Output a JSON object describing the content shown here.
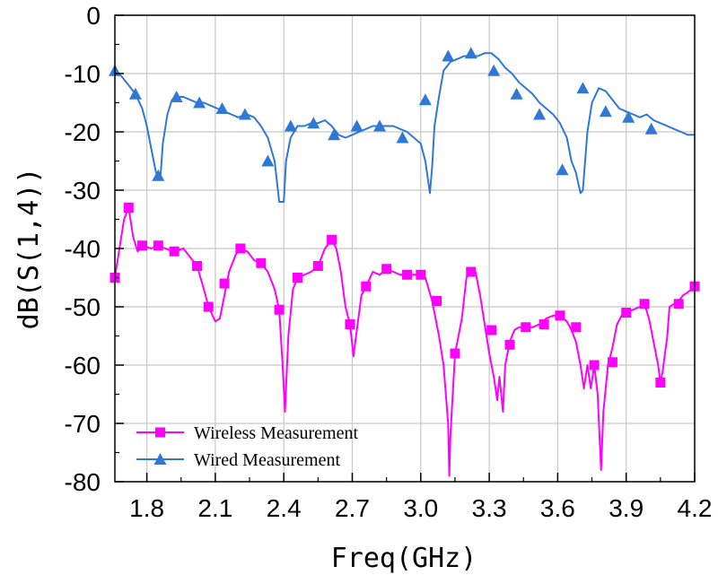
{
  "chart_data": {
    "type": "line",
    "xlabel": "Freq(GHz)",
    "ylabel": "dB(S(1,4))",
    "xlim": [
      1.66,
      4.2
    ],
    "ylim": [
      -80,
      0
    ],
    "x_ticks": [
      1.8,
      2.1,
      2.4,
      2.7,
      3.0,
      3.3,
      3.6,
      3.9,
      4.2
    ],
    "x_tick_labels": [
      "1.8",
      "2.1",
      "2.4",
      "2.7",
      "3.0",
      "3.3",
      "3.6",
      "3.9",
      "4.2"
    ],
    "y_ticks": [
      0,
      -10,
      -20,
      -30,
      -40,
      -50,
      -60,
      -70,
      -80
    ],
    "y_tick_labels": [
      "0",
      "-10",
      "-20",
      "-30",
      "-40",
      "-50",
      "-60",
      "-70",
      "-80"
    ],
    "grid": true,
    "legend_position": "bottom-left",
    "series": [
      {
        "name": "Wireless Measurement",
        "color": "#ff00ff",
        "marker": "square",
        "points": [
          [
            1.66,
            -45
          ],
          [
            1.68,
            -40
          ],
          [
            1.7,
            -35
          ],
          [
            1.72,
            -33
          ],
          [
            1.74,
            -38
          ],
          [
            1.76,
            -40.5
          ],
          [
            1.78,
            -39.5
          ],
          [
            1.82,
            -40
          ],
          [
            1.85,
            -39.5
          ],
          [
            1.88,
            -40
          ],
          [
            1.92,
            -40.5
          ],
          [
            1.96,
            -40
          ],
          [
            1.99,
            -41.5
          ],
          [
            2.02,
            -43
          ],
          [
            2.05,
            -47
          ],
          [
            2.07,
            -50
          ],
          [
            2.1,
            -52.5
          ],
          [
            2.12,
            -52
          ],
          [
            2.14,
            -48
          ],
          [
            2.16,
            -44
          ],
          [
            2.19,
            -41
          ],
          [
            2.21,
            -40
          ],
          [
            2.24,
            -40.5
          ],
          [
            2.27,
            -42
          ],
          [
            2.3,
            -42.5
          ],
          [
            2.33,
            -44
          ],
          [
            2.36,
            -47
          ],
          [
            2.38,
            -50.5
          ],
          [
            2.395,
            -60
          ],
          [
            2.405,
            -68
          ],
          [
            2.42,
            -55
          ],
          [
            2.44,
            -47
          ],
          [
            2.46,
            -45
          ],
          [
            2.49,
            -44.5
          ],
          [
            2.52,
            -44
          ],
          [
            2.55,
            -43
          ],
          [
            2.58,
            -40
          ],
          [
            2.61,
            -38.5
          ],
          [
            2.63,
            -40
          ],
          [
            2.65,
            -44
          ],
          [
            2.67,
            -50
          ],
          [
            2.69,
            -53
          ],
          [
            2.705,
            -58.5
          ],
          [
            2.72,
            -54
          ],
          [
            2.74,
            -48
          ],
          [
            2.76,
            -46.5
          ],
          [
            2.79,
            -44
          ],
          [
            2.82,
            -44.5
          ],
          [
            2.85,
            -43.5
          ],
          [
            2.88,
            -44
          ],
          [
            2.91,
            -44.5
          ],
          [
            2.94,
            -44.5
          ],
          [
            2.97,
            -44.5
          ],
          [
            3.0,
            -44.5
          ],
          [
            3.02,
            -45
          ],
          [
            3.05,
            -49
          ],
          [
            3.08,
            -55
          ],
          [
            3.1,
            -60
          ],
          [
            3.12,
            -70
          ],
          [
            3.125,
            -79
          ],
          [
            3.13,
            -72
          ],
          [
            3.15,
            -58
          ],
          [
            3.18,
            -52
          ],
          [
            3.2,
            -45
          ],
          [
            3.22,
            -44
          ],
          [
            3.24,
            -44
          ],
          [
            3.26,
            -48
          ],
          [
            3.28,
            -53
          ],
          [
            3.3,
            -58
          ],
          [
            3.32,
            -62
          ],
          [
            3.335,
            -66
          ],
          [
            3.345,
            -62
          ],
          [
            3.36,
            -68
          ],
          [
            3.37,
            -60
          ],
          [
            3.39,
            -56
          ],
          [
            3.41,
            -54
          ],
          [
            3.43,
            -53.5
          ],
          [
            3.46,
            -53.5
          ],
          [
            3.49,
            -53.5
          ],
          [
            3.52,
            -53
          ],
          [
            3.55,
            -52
          ],
          [
            3.58,
            -51.5
          ],
          [
            3.61,
            -51.5
          ],
          [
            3.64,
            -52.5
          ],
          [
            3.66,
            -54
          ],
          [
            3.68,
            -56
          ],
          [
            3.7,
            -60
          ],
          [
            3.715,
            -64
          ],
          [
            3.73,
            -60
          ],
          [
            3.745,
            -64
          ],
          [
            3.76,
            -60
          ],
          [
            3.775,
            -65
          ],
          [
            3.79,
            -78
          ],
          [
            3.8,
            -68
          ],
          [
            3.82,
            -60
          ],
          [
            3.84,
            -57
          ],
          [
            3.86,
            -53
          ],
          [
            3.88,
            -51.5
          ],
          [
            3.9,
            -51
          ],
          [
            3.93,
            -50.5
          ],
          [
            3.96,
            -50
          ],
          [
            3.98,
            -49.5
          ],
          [
            4.0,
            -52
          ],
          [
            4.02,
            -56
          ],
          [
            4.04,
            -60
          ],
          [
            4.05,
            -63
          ],
          [
            4.06,
            -61
          ],
          [
            4.08,
            -55
          ],
          [
            4.09,
            -50
          ],
          [
            4.11,
            -49.5
          ],
          [
            4.13,
            -49
          ],
          [
            4.15,
            -48
          ],
          [
            4.17,
            -47.5
          ],
          [
            4.2,
            -46.5
          ]
        ],
        "marker_points": [
          [
            1.66,
            -45
          ],
          [
            1.72,
            -33
          ],
          [
            1.78,
            -39.5
          ],
          [
            1.85,
            -39.5
          ],
          [
            1.92,
            -40.5
          ],
          [
            2.02,
            -43
          ],
          [
            2.07,
            -50
          ],
          [
            2.14,
            -46
          ],
          [
            2.21,
            -40
          ],
          [
            2.3,
            -42.5
          ],
          [
            2.38,
            -50.5
          ],
          [
            2.46,
            -45
          ],
          [
            2.55,
            -43
          ],
          [
            2.61,
            -38.5
          ],
          [
            2.69,
            -53
          ],
          [
            2.76,
            -46.5
          ],
          [
            2.85,
            -43.5
          ],
          [
            2.94,
            -44.5
          ],
          [
            3.0,
            -44.5
          ],
          [
            3.07,
            -49
          ],
          [
            3.15,
            -58
          ],
          [
            3.22,
            -44
          ],
          [
            3.31,
            -54
          ],
          [
            3.39,
            -56.5
          ],
          [
            3.46,
            -53.5
          ],
          [
            3.54,
            -53
          ],
          [
            3.61,
            -51.5
          ],
          [
            3.68,
            -53.5
          ],
          [
            3.76,
            -60
          ],
          [
            3.84,
            -59.5
          ],
          [
            3.9,
            -51
          ],
          [
            3.98,
            -49.5
          ],
          [
            4.05,
            -63
          ],
          [
            4.13,
            -49.5
          ],
          [
            4.2,
            -46.5
          ]
        ]
      },
      {
        "name": "Wired Measurement",
        "color": "#2f78d6",
        "marker": "triangle",
        "points": [
          [
            1.66,
            -9.5
          ],
          [
            1.69,
            -10.5
          ],
          [
            1.72,
            -12
          ],
          [
            1.75,
            -13.5
          ],
          [
            1.78,
            -16
          ],
          [
            1.8,
            -19
          ],
          [
            1.82,
            -23
          ],
          [
            1.84,
            -27
          ],
          [
            1.86,
            -27.5
          ],
          [
            1.87,
            -22
          ],
          [
            1.89,
            -17
          ],
          [
            1.91,
            -14.5
          ],
          [
            1.93,
            -14
          ],
          [
            1.96,
            -14
          ],
          [
            1.99,
            -14.5
          ],
          [
            2.02,
            -15
          ],
          [
            2.05,
            -15
          ],
          [
            2.08,
            -15.5
          ],
          [
            2.11,
            -16
          ],
          [
            2.14,
            -16.5
          ],
          [
            2.17,
            -17
          ],
          [
            2.2,
            -17.5
          ],
          [
            2.24,
            -17
          ],
          [
            2.27,
            -17.5
          ],
          [
            2.3,
            -19
          ],
          [
            2.33,
            -21
          ],
          [
            2.36,
            -25
          ],
          [
            2.38,
            -32
          ],
          [
            2.4,
            -32
          ],
          [
            2.41,
            -25
          ],
          [
            2.43,
            -21
          ],
          [
            2.46,
            -19
          ],
          [
            2.49,
            -19
          ],
          [
            2.52,
            -18.5
          ],
          [
            2.55,
            -18.5
          ],
          [
            2.58,
            -18
          ],
          [
            2.61,
            -19
          ],
          [
            2.64,
            -20.5
          ],
          [
            2.67,
            -21
          ],
          [
            2.7,
            -20.5
          ],
          [
            2.73,
            -20
          ],
          [
            2.76,
            -19.5
          ],
          [
            2.79,
            -19
          ],
          [
            2.82,
            -19
          ],
          [
            2.85,
            -19
          ],
          [
            2.88,
            -19
          ],
          [
            2.91,
            -19.5
          ],
          [
            2.94,
            -20
          ],
          [
            2.97,
            -21
          ],
          [
            3.0,
            -22
          ],
          [
            3.02,
            -25
          ],
          [
            3.04,
            -30.5
          ],
          [
            3.05,
            -26
          ],
          [
            3.06,
            -19
          ],
          [
            3.08,
            -14
          ],
          [
            3.1,
            -9.5
          ],
          [
            3.13,
            -8
          ],
          [
            3.16,
            -7.5
          ],
          [
            3.19,
            -7
          ],
          [
            3.22,
            -7
          ],
          [
            3.25,
            -7
          ],
          [
            3.28,
            -6.5
          ],
          [
            3.31,
            -6.5
          ],
          [
            3.34,
            -7.5
          ],
          [
            3.37,
            -9
          ],
          [
            3.4,
            -10
          ],
          [
            3.43,
            -11.5
          ],
          [
            3.46,
            -12.5
          ],
          [
            3.49,
            -13.5
          ],
          [
            3.52,
            -15
          ],
          [
            3.55,
            -16
          ],
          [
            3.58,
            -17
          ],
          [
            3.61,
            -18.5
          ],
          [
            3.64,
            -21
          ],
          [
            3.66,
            -25
          ],
          [
            3.68,
            -27
          ],
          [
            3.7,
            -30.5
          ],
          [
            3.71,
            -30
          ],
          [
            3.73,
            -20
          ],
          [
            3.75,
            -15
          ],
          [
            3.78,
            -12.5
          ],
          [
            3.81,
            -13
          ],
          [
            3.84,
            -14.5
          ],
          [
            3.87,
            -16
          ],
          [
            3.9,
            -16.5
          ],
          [
            3.93,
            -17
          ],
          [
            3.96,
            -17.5
          ],
          [
            3.99,
            -17
          ],
          [
            4.02,
            -18
          ],
          [
            4.05,
            -18.5
          ],
          [
            4.08,
            -19
          ],
          [
            4.11,
            -19.5
          ],
          [
            4.14,
            -20
          ],
          [
            4.17,
            -20.5
          ],
          [
            4.2,
            -20.5
          ]
        ],
        "marker_points": [
          [
            1.66,
            -9.5
          ],
          [
            1.75,
            -13.5
          ],
          [
            1.85,
            -27.5
          ],
          [
            1.93,
            -14
          ],
          [
            2.03,
            -15
          ],
          [
            2.13,
            -16
          ],
          [
            2.23,
            -17
          ],
          [
            2.33,
            -25
          ],
          [
            2.43,
            -19
          ],
          [
            2.53,
            -18.5
          ],
          [
            2.62,
            -20.5
          ],
          [
            2.72,
            -19
          ],
          [
            2.82,
            -19
          ],
          [
            2.92,
            -21
          ],
          [
            3.02,
            -14.5
          ],
          [
            3.12,
            -7
          ],
          [
            3.22,
            -6.5
          ],
          [
            3.32,
            -9.5
          ],
          [
            3.42,
            -13.5
          ],
          [
            3.52,
            -17
          ],
          [
            3.62,
            -26.5
          ],
          [
            3.71,
            -12.5
          ],
          [
            3.81,
            -16.5
          ],
          [
            3.91,
            -17.5
          ],
          [
            4.01,
            -19.5
          ]
        ]
      }
    ]
  }
}
